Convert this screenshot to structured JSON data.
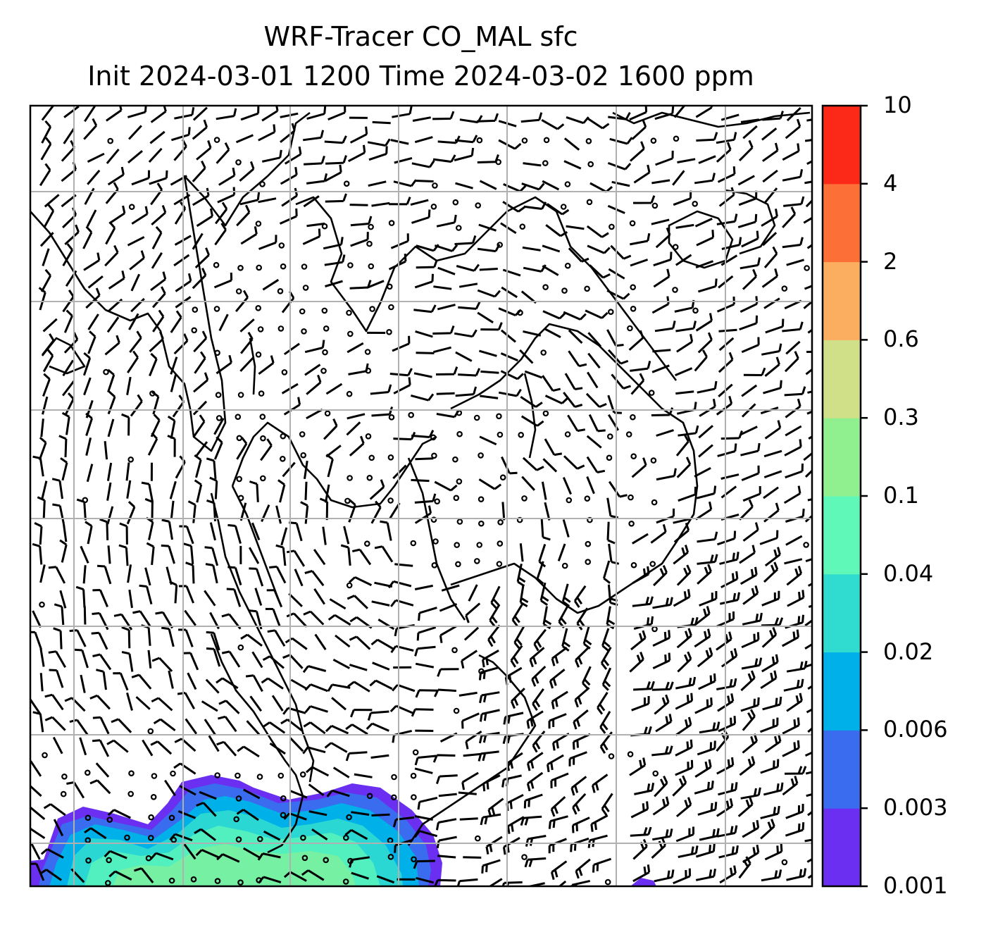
{
  "title": {
    "line1": "WRF-Tracer CO_MAL sfc",
    "line2": "Init 2024-03-01 1200 Time 2024-03-02 1600 ppm"
  },
  "colorbar": {
    "levels": [
      "0.001",
      "0.003",
      "0.006",
      "0.02",
      "0.04",
      "0.1",
      "0.3",
      "0.6",
      "2",
      "4",
      "10"
    ],
    "colors": [
      "#6a2ff0",
      "#3a6cf0",
      "#00b0e8",
      "#30dcd0",
      "#60f8b8",
      "#90f090",
      "#d0e088",
      "#fcae60",
      "#fc7038",
      "#fc2818"
    ]
  },
  "map": {
    "gridlines": true,
    "wind_barbs": true,
    "coastlines": true
  }
}
